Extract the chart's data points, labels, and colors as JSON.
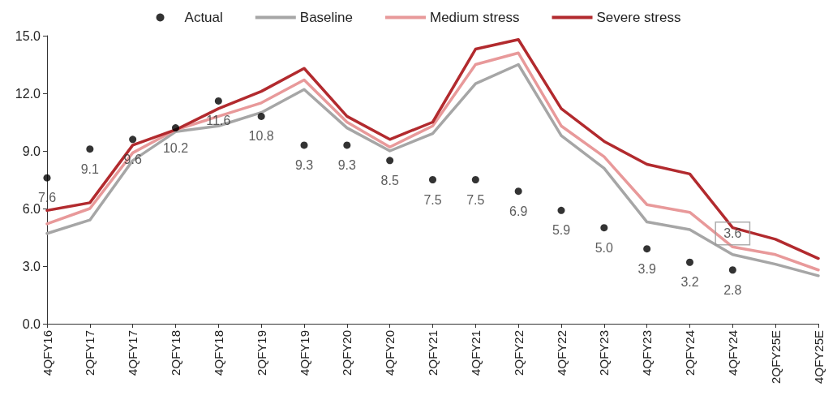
{
  "chart_data": {
    "type": "line",
    "categories": [
      "4QFY16",
      "2QFY17",
      "4QFY17",
      "2QFY18",
      "4QFY18",
      "2QFY19",
      "4QFY19",
      "2QFY20",
      "4QFY20",
      "2QFY21",
      "4QFY21",
      "2QFY22",
      "4QFY22",
      "2QFY23",
      "4QFY23",
      "2QFY24",
      "4QFY24",
      "2QFY25E",
      "4QFY25E"
    ],
    "series": [
      {
        "name": "Actual",
        "type": "scatter",
        "marker": "circle",
        "color": "#000000",
        "values": [
          7.6,
          9.1,
          9.6,
          10.2,
          11.6,
          10.8,
          9.3,
          9.3,
          8.5,
          7.5,
          7.5,
          6.9,
          5.9,
          5.0,
          3.9,
          3.2,
          2.8,
          null,
          null
        ],
        "value_labels": [
          "7.6",
          "9.1",
          "9.6",
          "10.2",
          "11.6",
          "10.8",
          "9.3",
          "9.3",
          "8.5",
          "7.5",
          "7.5",
          "6.9",
          "5.9",
          "5.0",
          "3.9",
          "3.2",
          "2.8",
          null,
          null
        ]
      },
      {
        "name": "Baseline",
        "color": "#a6a6a6",
        "values": [
          4.7,
          5.4,
          8.5,
          10.0,
          10.3,
          11.0,
          12.2,
          10.2,
          9.0,
          9.9,
          12.5,
          13.5,
          9.8,
          8.1,
          5.3,
          4.9,
          3.6,
          3.1,
          2.5
        ]
      },
      {
        "name": "Medium stress",
        "color": "#e8999a",
        "values": [
          5.2,
          6.0,
          8.9,
          10.1,
          10.8,
          11.5,
          12.7,
          10.5,
          9.2,
          10.3,
          13.5,
          14.1,
          10.3,
          8.7,
          6.2,
          5.8,
          4.0,
          3.6,
          2.8
        ]
      },
      {
        "name": "Severe stress",
        "color": "#b22a2e",
        "values": [
          5.9,
          6.3,
          9.3,
          10.1,
          11.2,
          12.1,
          13.3,
          10.8,
          9.6,
          10.5,
          14.3,
          14.8,
          11.2,
          9.5,
          8.3,
          7.8,
          5.0,
          4.4,
          3.4
        ]
      }
    ],
    "annotations": [
      {
        "text": "3.6",
        "x": "4QFY24",
        "y": 3.6
      }
    ],
    "ylim": [
      0,
      15
    ],
    "yticks": [
      {
        "value": 0,
        "label": "0.0"
      },
      {
        "value": 3,
        "label": "3.0"
      },
      {
        "value": 6,
        "label": "6.0"
      },
      {
        "value": 9,
        "label": "9.0"
      },
      {
        "value": 12,
        "label": "12.0"
      },
      {
        "value": 15,
        "label": "15.0"
      }
    ],
    "grid": false,
    "legend": "top",
    "marker": "none",
    "line_style": "solid"
  }
}
